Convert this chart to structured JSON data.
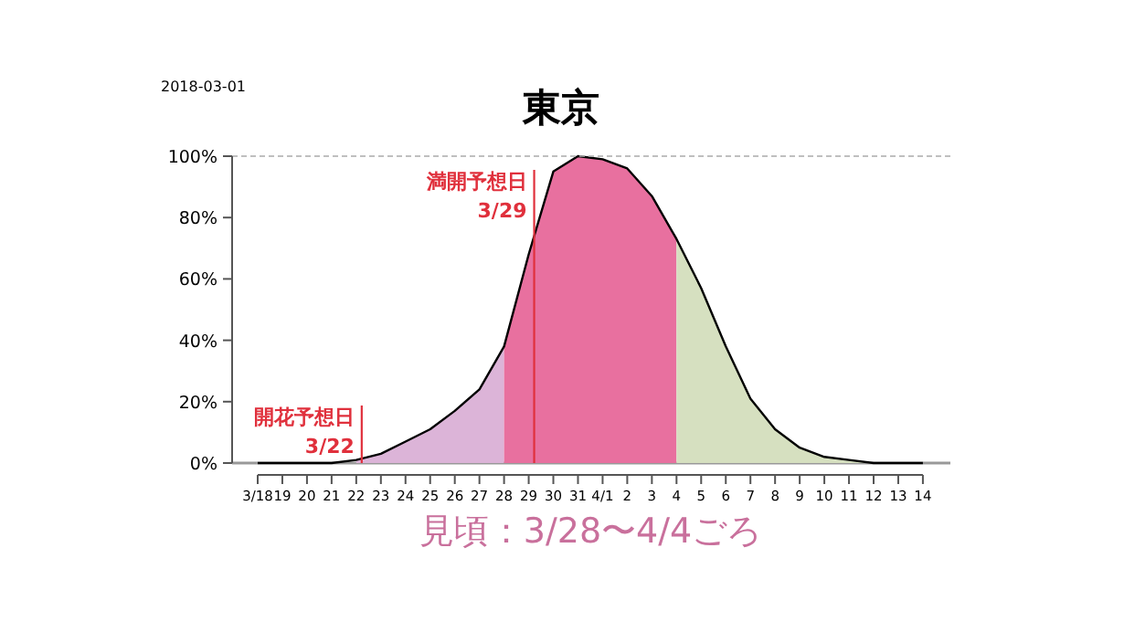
{
  "chart_data": {
    "type": "area",
    "title": "東京",
    "categories": [
      "3/18",
      "19",
      "20",
      "21",
      "22",
      "23",
      "24",
      "25",
      "26",
      "27",
      "28",
      "29",
      "30",
      "31",
      "4/1",
      "2",
      "3",
      "4",
      "5",
      "6",
      "7",
      "8",
      "9",
      "10",
      "11",
      "12",
      "13",
      "14"
    ],
    "series": [
      {
        "color": "#dcb4d8",
        "values": [
          null,
          null,
          null,
          null,
          1,
          3,
          7,
          11,
          17,
          24,
          38,
          null,
          null,
          null,
          null,
          null,
          null,
          null,
          null,
          null,
          null,
          null,
          null,
          null,
          null,
          null,
          null,
          null
        ]
      },
      {
        "color": "#e8709f",
        "values": [
          null,
          null,
          null,
          null,
          null,
          null,
          null,
          null,
          null,
          null,
          38,
          68,
          95,
          100,
          99,
          96,
          87,
          73,
          null,
          null,
          null,
          null,
          null,
          null,
          null,
          null,
          null,
          null
        ]
      },
      {
        "color": "#d6e0c0",
        "values": [
          null,
          null,
          null,
          null,
          null,
          null,
          null,
          null,
          null,
          null,
          null,
          null,
          null,
          null,
          null,
          null,
          null,
          73,
          57,
          38,
          21,
          11,
          5,
          2,
          1,
          0,
          null,
          null
        ]
      },
      {
        "type": "line",
        "color": "#000000",
        "values": [
          0,
          0,
          0,
          0,
          1,
          3,
          7,
          11,
          17,
          24,
          38,
          68,
          95,
          100,
          99,
          96,
          87,
          73,
          57,
          38,
          21,
          11,
          5,
          2,
          1,
          0,
          0,
          0
        ]
      }
    ],
    "ylim": [
      0,
      100
    ],
    "yticks": [
      {
        "value": 0,
        "label": "0%"
      },
      {
        "value": 20,
        "label": "20%"
      },
      {
        "value": 40,
        "label": "40%"
      },
      {
        "value": 60,
        "label": "60%"
      },
      {
        "value": 80,
        "label": "80%"
      },
      {
        "value": 100,
        "label": "100%"
      }
    ],
    "ref_lines": [
      {
        "axis": "x",
        "value": "22",
        "label": "開花予想日 3/22",
        "color": "#e0303c"
      },
      {
        "axis": "x",
        "value": "29",
        "label": "満開予想日 3/29",
        "color": "#e0303c"
      },
      {
        "axis": "y",
        "value": 100,
        "color": "#aaaaaa",
        "line_style": "dashed"
      }
    ],
    "annotations": [
      "2018-03-01",
      "見頃：3/28〜4/4ごろ"
    ]
  }
}
